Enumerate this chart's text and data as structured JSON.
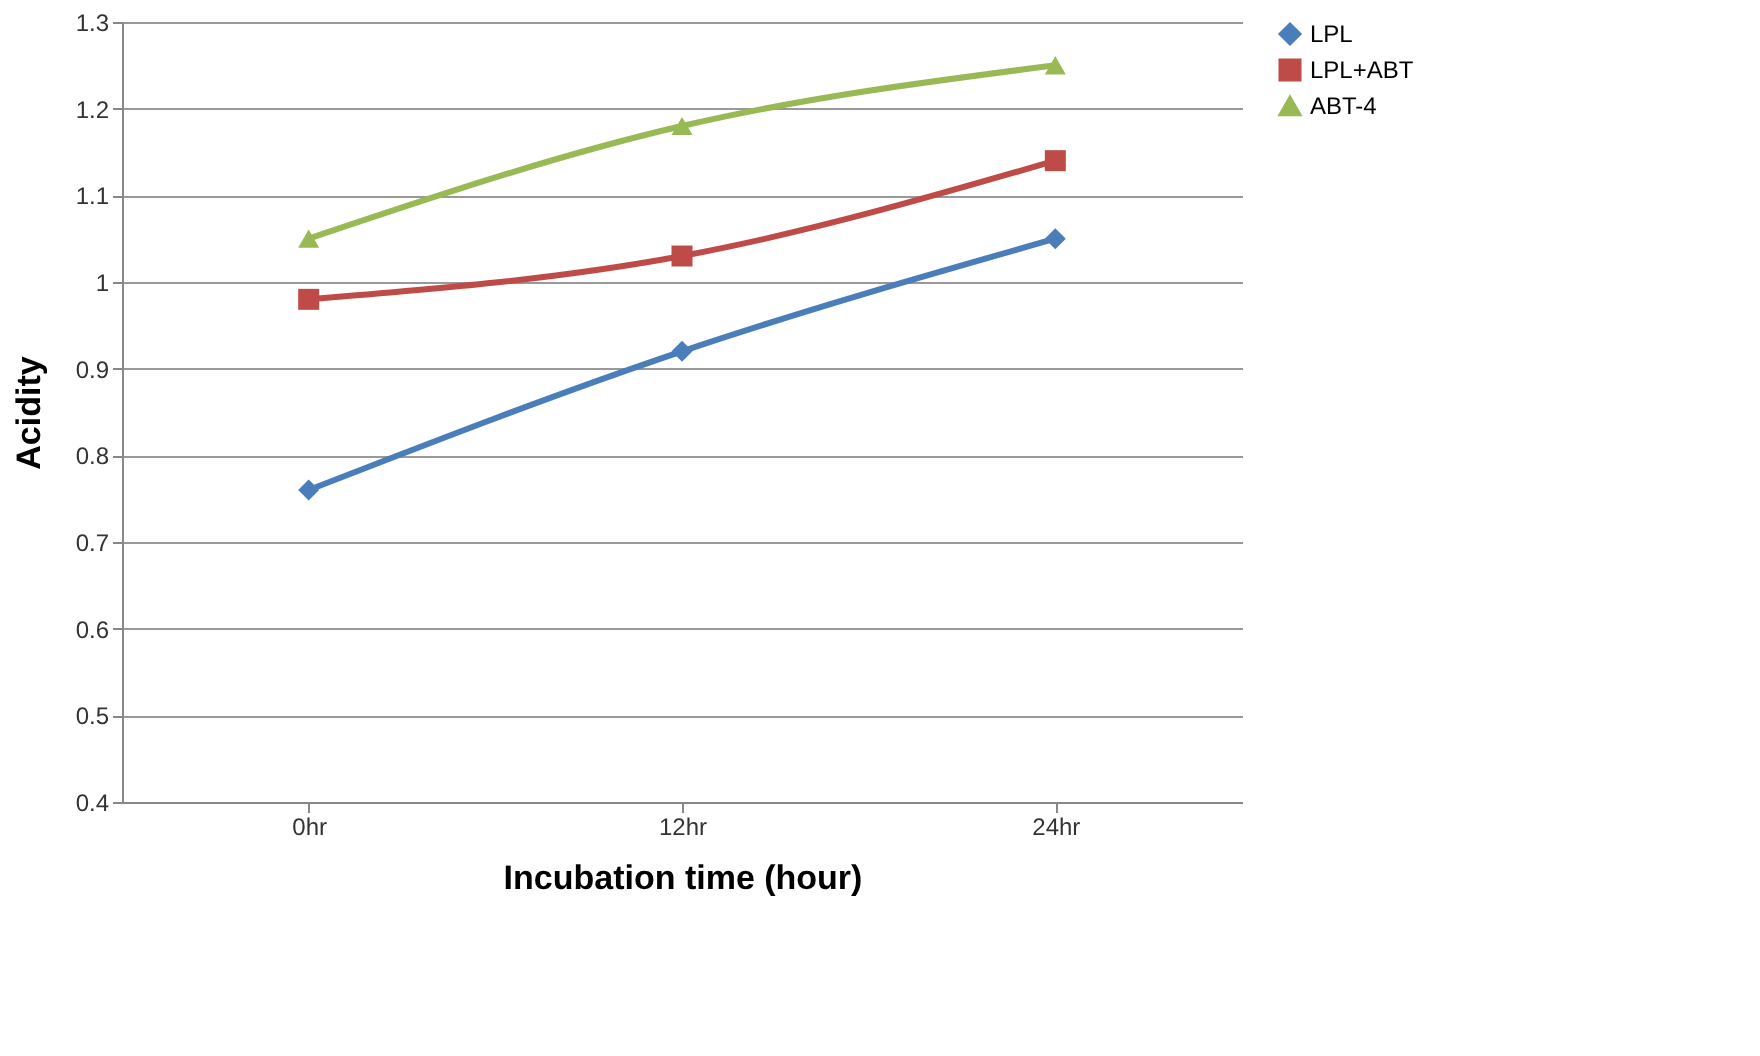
{
  "chart_data": {
    "type": "line",
    "xlabel": "Incubation time (hour)",
    "ylabel": "Acidity",
    "categories": [
      "0hr",
      "12hr",
      "24hr"
    ],
    "series": [
      {
        "name": "LPL",
        "color": "#4a7ebb",
        "marker": "diamond",
        "values": [
          0.76,
          0.92,
          1.05
        ]
      },
      {
        "name": "LPL+ABT",
        "color": "#be4b48",
        "marker": "square",
        "values": [
          0.98,
          1.03,
          1.14
        ]
      },
      {
        "name": "ABT-4",
        "color": "#98b954",
        "marker": "triangle",
        "values": [
          1.05,
          1.18,
          1.25
        ]
      }
    ],
    "ylim": [
      0.4,
      1.3
    ],
    "yticks": [
      0.4,
      0.5,
      0.6,
      0.7,
      0.8,
      0.9,
      1,
      1.1,
      1.2,
      1.3
    ],
    "grid": "y",
    "legend": "right",
    "line_style": "solid"
  }
}
